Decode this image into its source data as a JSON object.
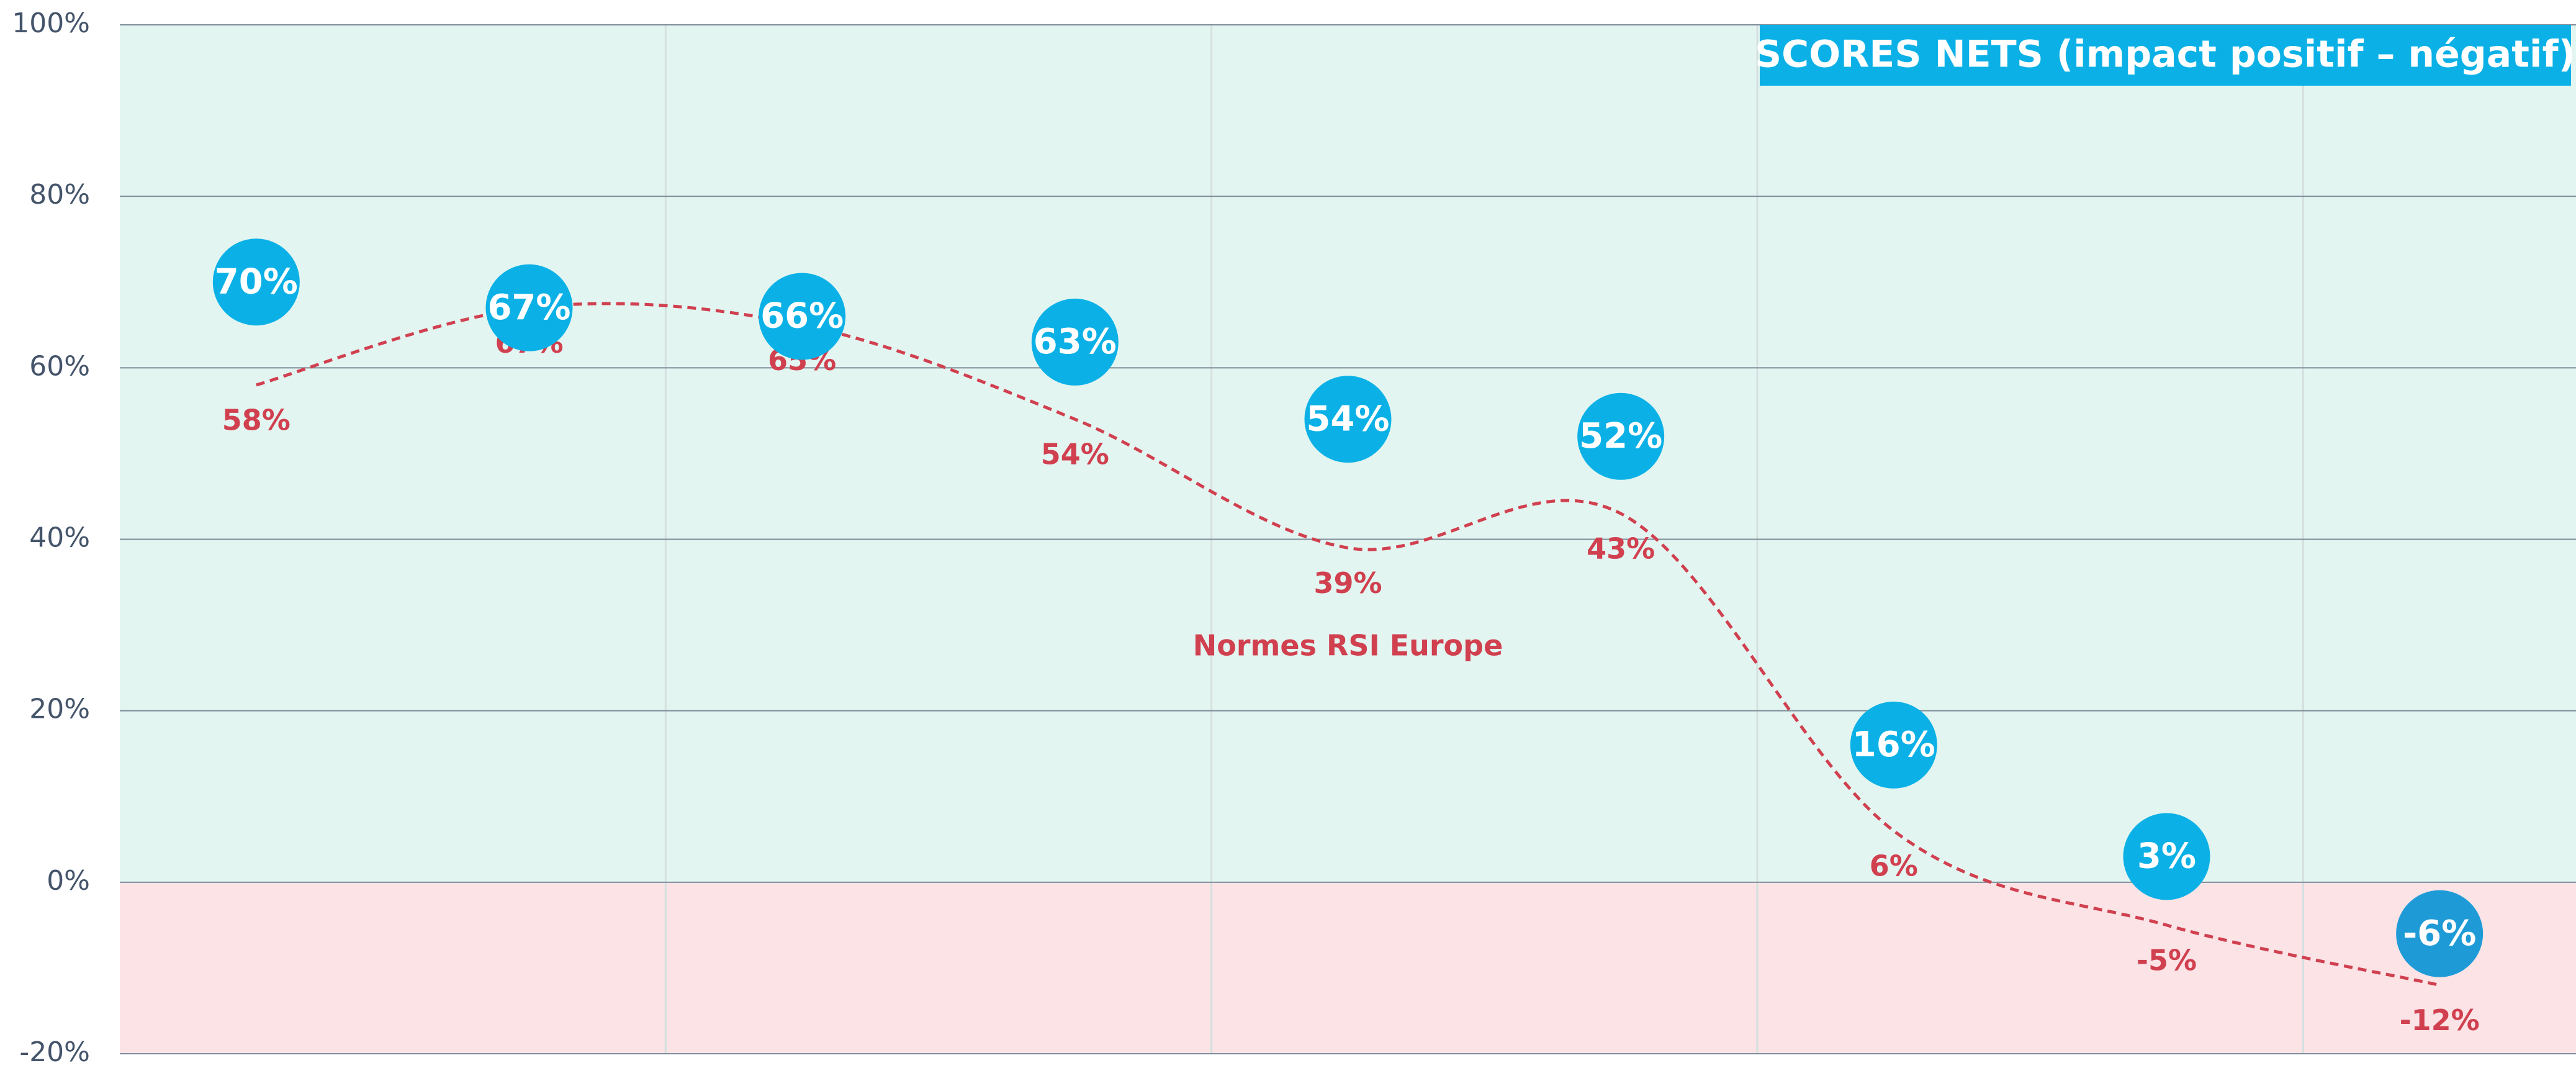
{
  "chart_data": {
    "type": "bubble-line",
    "title": "SCORES NETS (impact positif – négatif)",
    "categories": [
      null,
      null,
      null,
      null,
      null,
      null,
      null,
      null,
      null
    ],
    "series": [
      {
        "color": "#0bb1e6",
        "values": [
          70,
          67,
          66,
          63,
          54,
          52,
          16,
          3,
          -6
        ],
        "value_labels": [
          "70%",
          "67%",
          "66%",
          "63%",
          "54%",
          "52%",
          "16%",
          "3%",
          "-6%"
        ]
      },
      {
        "name": "Normes RSI Europe",
        "color": "#d0404f",
        "values": [
          58,
          67,
          65,
          54,
          39,
          43,
          6,
          -5,
          -12
        ],
        "value_labels": [
          "58%",
          "67%",
          "65%",
          "54%",
          "39%",
          "43%",
          "6%",
          "-5%",
          "-12%"
        ]
      }
    ],
    "ylim": [
      -20,
      100
    ],
    "yticks": [
      {
        "value": -20,
        "label": "-20%"
      },
      {
        "value": 0,
        "label": "0%"
      },
      {
        "value": 20,
        "label": "20%"
      },
      {
        "value": 40,
        "label": "40%"
      },
      {
        "value": 60,
        "label": "60%"
      },
      {
        "value": 80,
        "label": "80%"
      },
      {
        "value": 100,
        "label": "100%"
      }
    ],
    "grid": true
  }
}
